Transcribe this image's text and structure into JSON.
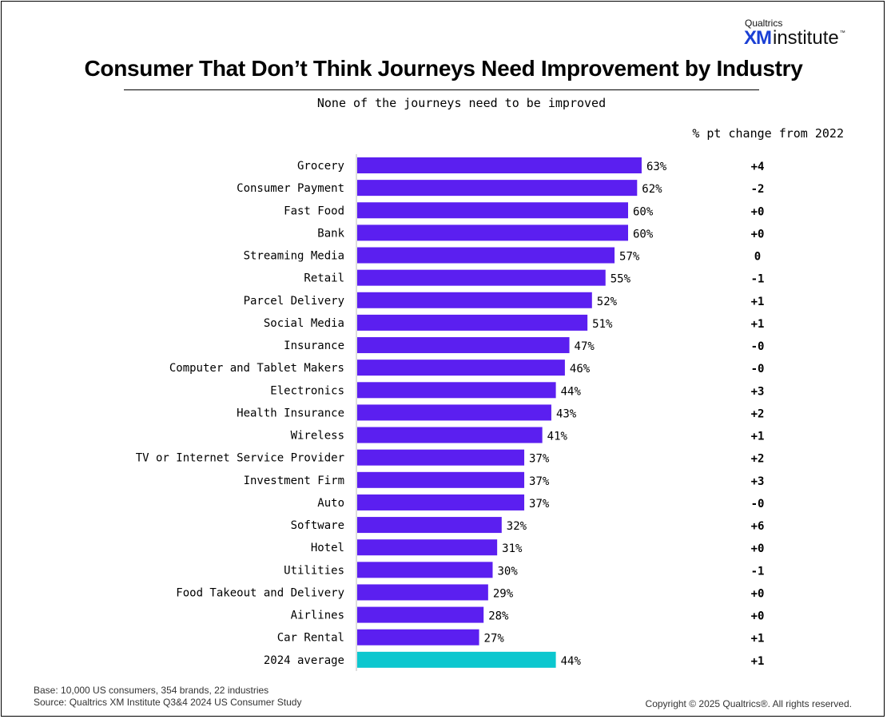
{
  "branding": {
    "company": "Qualtrics",
    "xm": "XM",
    "institute": "institute",
    "tm": "™"
  },
  "chart_data": {
    "type": "bar",
    "orientation": "horizontal",
    "title": "Consumer That Don’t Think Journeys Need Improvement by Industry",
    "subtitle": "None of the journeys need to be improved",
    "change_header": "% pt change from 2022",
    "xlim": [
      0,
      100
    ],
    "value_suffix": "%",
    "colors": {
      "bar": "#5b1ff0",
      "average": "#0cc7cf"
    },
    "categories": [
      "Grocery",
      "Consumer Payment",
      "Fast Food",
      "Bank",
      "Streaming Media",
      "Retail",
      "Parcel Delivery",
      "Social Media",
      "Insurance",
      "Computer and Tablet Makers",
      "Electronics",
      "Health Insurance",
      "Wireless",
      "TV or Internet Service Provider",
      "Investment Firm",
      "Auto",
      "Software",
      "Hotel",
      "Utilities",
      "Food Takeout and Delivery",
      "Airlines",
      "Car Rental",
      "2024 average"
    ],
    "values": [
      63,
      62,
      60,
      60,
      57,
      55,
      52,
      51,
      47,
      46,
      44,
      43,
      41,
      37,
      37,
      37,
      32,
      31,
      30,
      29,
      28,
      27,
      44
    ],
    "changes": [
      "+4",
      "-2",
      "+0",
      "+0",
      "0",
      "-1",
      "+1",
      "+1",
      "-0",
      "-0",
      "+3",
      "+2",
      "+1",
      "+2",
      "+3",
      "-0",
      "+6",
      "+0",
      "-1",
      "+0",
      "+0",
      "+1",
      "+1"
    ],
    "highlight_category": "2024 average"
  },
  "footer": {
    "base": "Base: 10,000 US consumers, 354 brands, 22 industries",
    "source": "Source: Qualtrics XM Institute Q3&4 2024 US Consumer Study",
    "copyright": "Copyright © 2025 Qualtrics®. All rights reserved."
  }
}
